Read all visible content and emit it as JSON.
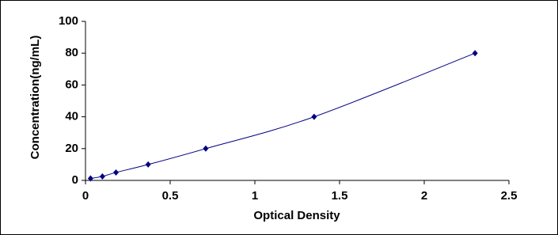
{
  "chart_data": {
    "type": "scatter",
    "line": true,
    "smooth": true,
    "color": "#000080",
    "x_label": "Optical Density",
    "y_label": "Concentration(ng/mL)",
    "x": [
      0.03,
      0.1,
      0.18,
      0.37,
      0.71,
      1.35,
      2.3
    ],
    "values": [
      1.25,
      2.5,
      5,
      10,
      20,
      40,
      80
    ],
    "xlim": [
      0,
      2.5
    ],
    "xticks": [
      0,
      0.5,
      1,
      1.5,
      2,
      2.5
    ],
    "ylim": [
      0,
      100
    ],
    "yticks": [
      0,
      20,
      40,
      60,
      80,
      100
    ],
    "grid": false
  }
}
